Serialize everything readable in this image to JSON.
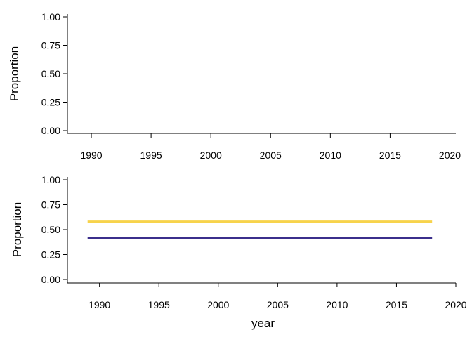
{
  "chart_data": [
    {
      "type": "line",
      "title": "",
      "xlabel": "",
      "ylabel": "Proportion",
      "xlim": [
        1988,
        2020.5
      ],
      "ylim": [
        0,
        1
      ],
      "xticks": [
        1990,
        1995,
        2000,
        2005,
        2010,
        2015,
        2020
      ],
      "xtick_labels": [
        "1990",
        "1995",
        "2000",
        "2005",
        "2010",
        "2015",
        "2020"
      ],
      "yticks": [
        0,
        0.25,
        0.5,
        0.75,
        1
      ],
      "ytick_labels": [
        "0.00",
        "0.25",
        "0.50",
        "0.75",
        "1.00"
      ],
      "grid": false,
      "series": []
    },
    {
      "type": "line",
      "title": "",
      "xlabel": "year",
      "ylabel": "Proportion",
      "xlim": [
        1987.3,
        2020
      ],
      "ylim": [
        0,
        1
      ],
      "xticks": [
        1990,
        1995,
        2000,
        2005,
        2010,
        2015,
        2020
      ],
      "xtick_labels": [
        "1990",
        "1995",
        "2000",
        "2005",
        "2010",
        "2015",
        "2020"
      ],
      "yticks": [
        0,
        0.25,
        0.5,
        0.75,
        1
      ],
      "ytick_labels": [
        "0.00",
        "0.25",
        "0.50",
        "0.75",
        "1.00"
      ],
      "grid": false,
      "series": [
        {
          "color": "#F7D34B",
          "x": [
            1989,
            2018
          ],
          "y": [
            0.58,
            0.58
          ]
        },
        {
          "color": "#3B2F8C",
          "x": [
            1989,
            2018
          ],
          "y": [
            0.415,
            0.415
          ]
        }
      ]
    }
  ]
}
